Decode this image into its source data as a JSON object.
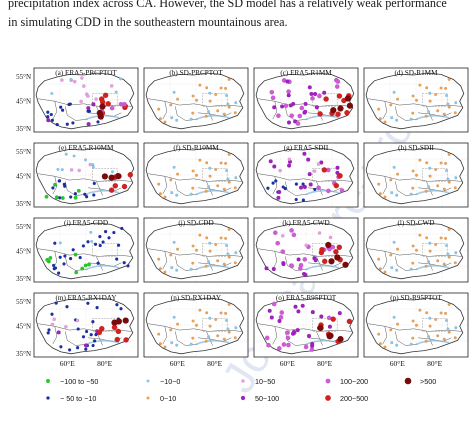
{
  "text": {
    "line1": "precipitation index across CA. However, the SD model has a relatively weak performance",
    "line2": "in simulating CDD in the southeastern mountainous area."
  },
  "watermark": "Journal Pre-proof",
  "axes": {
    "lat_labels": [
      "55°N",
      "45°N",
      "35°N"
    ],
    "lon_labels": [
      "60°E",
      "80°E"
    ]
  },
  "panels": [
    {
      "label": "(a) ERA5-PRCPTOT",
      "style": "era5_prcptot"
    },
    {
      "label": "(b) SD-PRCPTOT",
      "style": "sd_light"
    },
    {
      "label": "(c) ERA5-R1MM",
      "style": "era5_r1mm"
    },
    {
      "label": "(d) SD-R1MM",
      "style": "sd_light"
    },
    {
      "label": "(e) ERA5-R10MM",
      "style": "era5_r10mm"
    },
    {
      "label": "(f) SD-R10MM",
      "style": "sd_light"
    },
    {
      "label": "(g) ERA5-SDII",
      "style": "era5_sdii"
    },
    {
      "label": "(h) SD-SDII",
      "style": "sd_light"
    },
    {
      "label": "(i) ERA5-CDD",
      "style": "era5_cdd"
    },
    {
      "label": "(j) SD-CDD",
      "style": "sd_light"
    },
    {
      "label": "(k) ERA5-CWD",
      "style": "era5_cwd"
    },
    {
      "label": "(l) SD-CWD",
      "style": "sd_light"
    },
    {
      "label": "(m) ERA5-RX1DAY",
      "style": "era5_rx1day"
    },
    {
      "label": "(n) SD-RX1DAY",
      "style": "sd_light"
    },
    {
      "label": "(o) ERA5-R95PTOT",
      "style": "era5_r95"
    },
    {
      "label": "(p) SD-R95PTOT",
      "style": "sd_light"
    }
  ],
  "legend": [
    {
      "label": "−100 to −50",
      "color": "#22cc22",
      "size": 1.3
    },
    {
      "label": "−10~0",
      "color": "#88c8ee",
      "size": 1.0
    },
    {
      "label": "10~50",
      "color": "#e8a0e0",
      "size": 1.2
    },
    {
      "label": "100~200",
      "color": "#d05ad8",
      "size": 1.6
    },
    {
      "label": ">500",
      "color": "#7a0a0a",
      "size": 2.2
    },
    {
      "label": "− 50 to −10",
      "color": "#1a2fa8",
      "size": 1.1
    },
    {
      "label": "0~10",
      "color": "#f0a050",
      "size": 1.0
    },
    {
      "label": "50~100",
      "color": "#a020c0",
      "size": 1.4
    },
    {
      "label": "200~500",
      "color": "#d42020",
      "size": 1.9
    }
  ]
}
